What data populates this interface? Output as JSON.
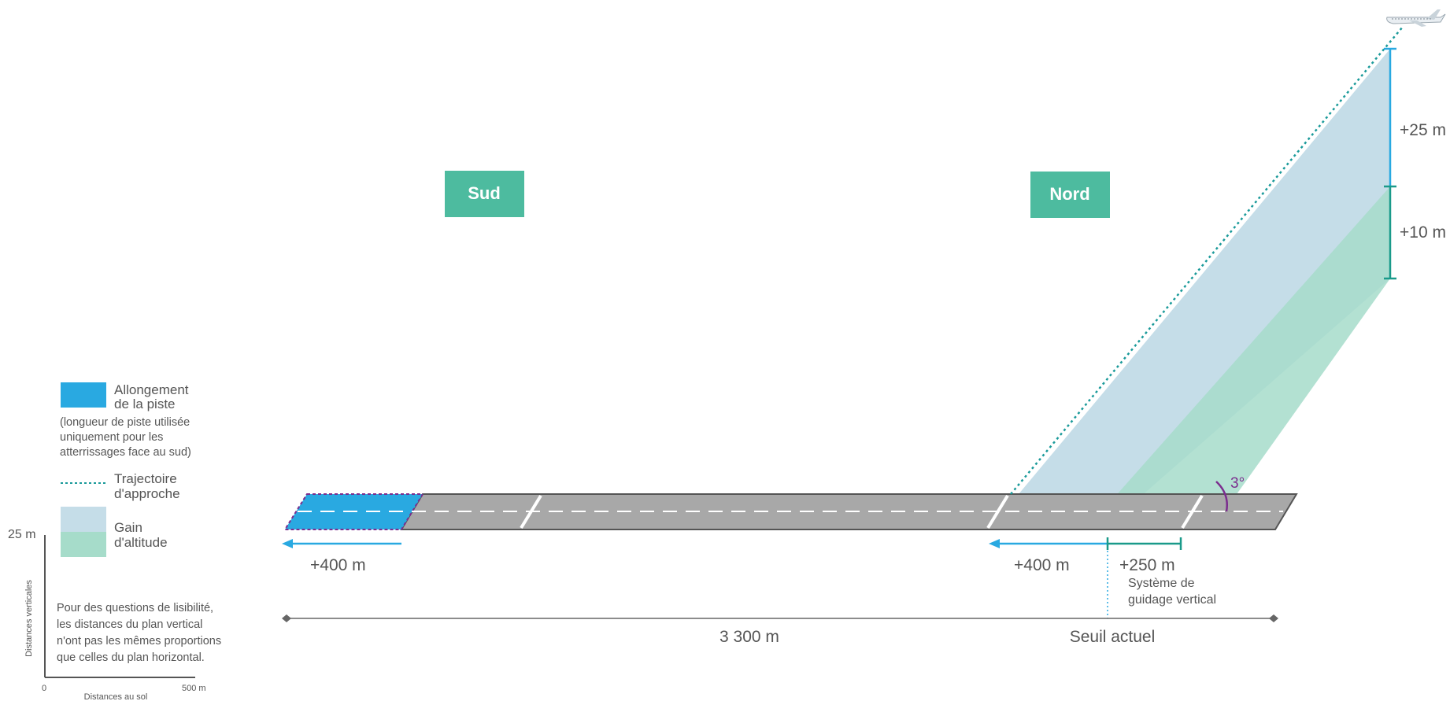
{
  "directions": {
    "south": "Sud",
    "north": "Nord"
  },
  "legend": {
    "extension_title_line1": "Allongement",
    "extension_title_line2": "de la piste",
    "extension_note_line1": "(longueur de piste utilisée",
    "extension_note_line2": "uniquement pour les",
    "extension_note_line3": "atterrissages face au sud)",
    "approach_line1": "Trajectoire",
    "approach_line2": "d'approche",
    "gain_line1": "Gain",
    "gain_line2": "d'altitude"
  },
  "scale": {
    "vertical_max": "25 m",
    "vertical_label": "Distances verticales",
    "origin": "0",
    "horizontal_max": "500 m",
    "horizontal_label": "Distances au sol"
  },
  "note": {
    "line1": "Pour des questions de lisibilité,",
    "line2": "les distances du plan vertical",
    "line3": "n'ont pas les mêmes proportions",
    "line4": "que celles du plan horizontal."
  },
  "measurements": {
    "south_extension": "+400 m",
    "north_extension": "+400 m",
    "guidance_extension": "+250 m",
    "guidance_line1": "Système de",
    "guidance_line2": "guidage vertical",
    "runway_length": "3 300 m",
    "current_threshold": "Seuil actuel",
    "altitude_gain_upper": "+25 m",
    "altitude_gain_lower": "+10 m",
    "glide_angle": "3°"
  },
  "colors": {
    "extension": "#29a9e1",
    "approach": "#1a9a9a",
    "gain_blue": "#c5dde8",
    "gain_green": "#a6dcca",
    "runway": "#a8a8a8",
    "direction_badge": "#4dbb9f",
    "angle": "#7b2d8e"
  },
  "icons": {
    "aircraft": "airplane-icon"
  }
}
